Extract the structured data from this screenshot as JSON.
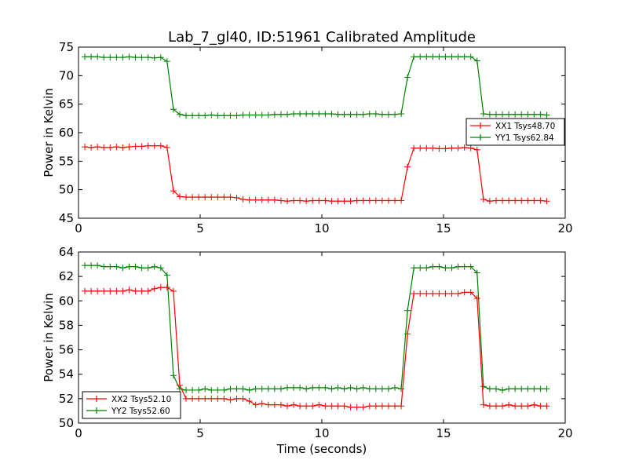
{
  "chart_data": [
    {
      "type": "line",
      "title": "Lab_7_gl40, ID:51961 Calibrated Amplitude",
      "xlabel": "",
      "ylabel": "Power in Kelvin",
      "xlim": [
        0,
        20
      ],
      "ylim": [
        45,
        75
      ],
      "xticks": [
        "0",
        "5",
        "10",
        "15",
        "20"
      ],
      "yticks": [
        "45",
        "50",
        "55",
        "60",
        "65",
        "70",
        "75"
      ],
      "xtick_values": [
        0,
        5,
        10,
        15,
        20
      ],
      "ytick_values": [
        45,
        50,
        55,
        60,
        65,
        70,
        75
      ],
      "grid": false,
      "legend_position": "right",
      "series": [
        {
          "name": "XX1 Tsys48.70",
          "color": "#ff0000",
          "marker": "plus",
          "x": [
            0.26,
            0.52,
            0.78,
            1.04,
            1.3,
            1.56,
            1.82,
            2.08,
            2.34,
            2.6,
            2.86,
            3.12,
            3.38,
            3.64,
            3.9,
            4.16,
            4.42,
            4.68,
            4.94,
            5.2,
            5.46,
            5.72,
            5.98,
            6.24,
            6.5,
            6.76,
            7.02,
            7.28,
            7.54,
            7.8,
            8.06,
            8.32,
            8.58,
            8.84,
            9.1,
            9.36,
            9.62,
            9.88,
            10.14,
            10.4,
            10.66,
            10.92,
            11.18,
            11.44,
            11.7,
            11.96,
            12.22,
            12.48,
            12.74,
            13.0,
            13.26,
            13.52,
            13.78,
            14.04,
            14.3,
            14.56,
            14.82,
            15.08,
            15.34,
            15.6,
            15.86,
            16.12,
            16.38,
            16.64,
            16.9,
            17.16,
            17.42,
            17.68,
            17.94,
            18.2,
            18.46,
            18.72,
            18.98,
            19.24
          ],
          "y": [
            57.5,
            57.4,
            57.5,
            57.4,
            57.4,
            57.5,
            57.4,
            57.5,
            57.6,
            57.6,
            57.7,
            57.7,
            57.7,
            57.4,
            49.8,
            48.8,
            48.7,
            48.7,
            48.7,
            48.7,
            48.7,
            48.7,
            48.7,
            48.7,
            48.6,
            48.3,
            48.2,
            48.2,
            48.2,
            48.2,
            48.2,
            48.1,
            48.0,
            48.1,
            48.1,
            48.0,
            48.1,
            48.1,
            48.1,
            48.0,
            48.0,
            48.0,
            48.0,
            48.1,
            48.1,
            48.1,
            48.1,
            48.1,
            48.1,
            48.1,
            48.1,
            54.0,
            57.3,
            57.3,
            57.3,
            57.3,
            57.2,
            57.2,
            57.3,
            57.3,
            57.4,
            57.3,
            57.0,
            48.3,
            48.0,
            48.1,
            48.1,
            48.1,
            48.1,
            48.1,
            48.1,
            48.1,
            48.1,
            48.0
          ]
        },
        {
          "name": "YY1 Tsys62.84",
          "color": "#008000",
          "marker": "plus",
          "x": [
            0.26,
            0.52,
            0.78,
            1.04,
            1.3,
            1.56,
            1.82,
            2.08,
            2.34,
            2.6,
            2.86,
            3.12,
            3.38,
            3.64,
            3.9,
            4.16,
            4.42,
            4.68,
            4.94,
            5.2,
            5.46,
            5.72,
            5.98,
            6.24,
            6.5,
            6.76,
            7.02,
            7.28,
            7.54,
            7.8,
            8.06,
            8.32,
            8.58,
            8.84,
            9.1,
            9.36,
            9.62,
            9.88,
            10.14,
            10.4,
            10.66,
            10.92,
            11.18,
            11.44,
            11.7,
            11.96,
            12.22,
            12.48,
            12.74,
            13.0,
            13.26,
            13.52,
            13.78,
            14.04,
            14.3,
            14.56,
            14.82,
            15.08,
            15.34,
            15.6,
            15.86,
            16.12,
            16.38,
            16.64,
            16.9,
            17.16,
            17.42,
            17.68,
            17.94,
            18.2,
            18.46,
            18.72,
            18.98,
            19.24
          ],
          "y": [
            73.3,
            73.3,
            73.3,
            73.2,
            73.2,
            73.2,
            73.2,
            73.3,
            73.2,
            73.2,
            73.2,
            73.1,
            73.2,
            72.5,
            64.1,
            63.2,
            63.0,
            63.0,
            63.0,
            63.0,
            63.1,
            63.0,
            63.0,
            63.0,
            63.0,
            63.1,
            63.1,
            63.1,
            63.1,
            63.1,
            63.2,
            63.2,
            63.2,
            63.3,
            63.3,
            63.3,
            63.3,
            63.3,
            63.3,
            63.3,
            63.2,
            63.2,
            63.2,
            63.2,
            63.2,
            63.3,
            63.3,
            63.2,
            63.2,
            63.2,
            63.3,
            69.7,
            73.3,
            73.3,
            73.3,
            73.3,
            73.3,
            73.3,
            73.3,
            73.3,
            73.3,
            73.3,
            72.6,
            63.3,
            63.2,
            63.2,
            63.2,
            63.2,
            63.2,
            63.2,
            63.2,
            63.2,
            63.2,
            63.1
          ]
        }
      ]
    },
    {
      "type": "line",
      "title": "",
      "xlabel": "Time (seconds)",
      "ylabel": "Power in Kelvin",
      "xlim": [
        0,
        20
      ],
      "ylim": [
        50,
        64
      ],
      "xticks": [
        "0",
        "5",
        "10",
        "15",
        "20"
      ],
      "yticks": [
        "50",
        "52",
        "54",
        "56",
        "58",
        "60",
        "62",
        "64"
      ],
      "xtick_values": [
        0,
        5,
        10,
        15,
        20
      ],
      "ytick_values": [
        50,
        52,
        54,
        56,
        58,
        60,
        62,
        64
      ],
      "grid": false,
      "legend_position": "lower-left",
      "series": [
        {
          "name": "XX2 Tsys52.10",
          "color": "#ff0000",
          "marker": "plus",
          "x": [
            0.26,
            0.52,
            0.78,
            1.04,
            1.3,
            1.56,
            1.82,
            2.08,
            2.34,
            2.6,
            2.86,
            3.12,
            3.38,
            3.64,
            3.9,
            4.16,
            4.42,
            4.68,
            4.94,
            5.2,
            5.46,
            5.72,
            5.98,
            6.24,
            6.5,
            6.76,
            7.02,
            7.28,
            7.54,
            7.8,
            8.06,
            8.32,
            8.58,
            8.84,
            9.1,
            9.36,
            9.62,
            9.88,
            10.14,
            10.4,
            10.66,
            10.92,
            11.18,
            11.44,
            11.7,
            11.96,
            12.22,
            12.48,
            12.74,
            13.0,
            13.26,
            13.52,
            13.78,
            14.04,
            14.3,
            14.56,
            14.82,
            15.08,
            15.34,
            15.6,
            15.86,
            16.12,
            16.38,
            16.64,
            16.9,
            17.16,
            17.42,
            17.68,
            17.94,
            18.2,
            18.46,
            18.72,
            18.98,
            19.24
          ],
          "y": [
            60.8,
            60.8,
            60.8,
            60.8,
            60.8,
            60.8,
            60.8,
            60.9,
            60.8,
            60.8,
            60.8,
            61.0,
            61.1,
            61.1,
            60.8,
            53.1,
            52.0,
            52.0,
            52.0,
            52.0,
            52.0,
            52.0,
            52.0,
            51.9,
            52.0,
            52.0,
            51.8,
            51.5,
            51.6,
            51.5,
            51.5,
            51.5,
            51.4,
            51.5,
            51.4,
            51.4,
            51.4,
            51.5,
            51.4,
            51.4,
            51.4,
            51.4,
            51.3,
            51.3,
            51.3,
            51.4,
            51.4,
            51.4,
            51.4,
            51.4,
            51.4,
            57.3,
            60.6,
            60.6,
            60.6,
            60.6,
            60.6,
            60.6,
            60.6,
            60.6,
            60.7,
            60.7,
            60.2,
            51.5,
            51.4,
            51.4,
            51.4,
            51.5,
            51.4,
            51.4,
            51.4,
            51.5,
            51.4,
            51.4
          ]
        },
        {
          "name": "YY2 Tsys52.60",
          "color": "#008000",
          "marker": "plus",
          "x": [
            0.26,
            0.52,
            0.78,
            1.04,
            1.3,
            1.56,
            1.82,
            2.08,
            2.34,
            2.6,
            2.86,
            3.12,
            3.38,
            3.64,
            3.9,
            4.16,
            4.42,
            4.68,
            4.94,
            5.2,
            5.46,
            5.72,
            5.98,
            6.24,
            6.5,
            6.76,
            7.02,
            7.28,
            7.54,
            7.8,
            8.06,
            8.32,
            8.58,
            8.84,
            9.1,
            9.36,
            9.62,
            9.88,
            10.14,
            10.4,
            10.66,
            10.92,
            11.18,
            11.44,
            11.7,
            11.96,
            12.22,
            12.48,
            12.74,
            13.0,
            13.26,
            13.52,
            13.78,
            14.04,
            14.3,
            14.56,
            14.82,
            15.08,
            15.34,
            15.6,
            15.86,
            16.12,
            16.38,
            16.64,
            16.9,
            17.16,
            17.42,
            17.68,
            17.94,
            18.2,
            18.46,
            18.72,
            18.98,
            19.24
          ],
          "y": [
            62.9,
            62.9,
            62.9,
            62.8,
            62.8,
            62.8,
            62.7,
            62.8,
            62.8,
            62.7,
            62.7,
            62.8,
            62.7,
            62.1,
            53.9,
            52.8,
            52.7,
            52.7,
            52.7,
            52.8,
            52.7,
            52.7,
            52.7,
            52.8,
            52.8,
            52.8,
            52.7,
            52.8,
            52.8,
            52.8,
            52.8,
            52.8,
            52.9,
            52.9,
            52.9,
            52.8,
            52.9,
            52.9,
            52.9,
            52.8,
            52.9,
            52.8,
            52.9,
            52.8,
            52.9,
            52.8,
            52.8,
            52.8,
            52.8,
            52.9,
            52.8,
            59.2,
            62.7,
            62.7,
            62.7,
            62.8,
            62.8,
            62.7,
            62.7,
            62.8,
            62.8,
            62.8,
            62.3,
            53.0,
            52.8,
            52.8,
            52.7,
            52.8,
            52.8,
            52.8,
            52.8,
            52.8,
            52.8,
            52.8
          ]
        }
      ]
    }
  ]
}
